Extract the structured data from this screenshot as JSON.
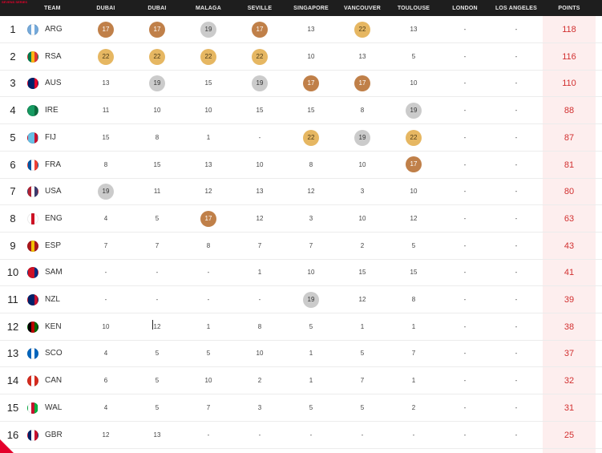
{
  "header": {
    "logo_text": "SEVENS SERIES",
    "team_label": "TEAM",
    "columns": [
      "DUBAI",
      "DUBAI",
      "MALAGA",
      "SEVILLE",
      "SINGAPORE",
      "VANCOUVER",
      "TOULOUSE",
      "LONDON",
      "LOS ANGELES"
    ],
    "points_label": "POINTS"
  },
  "rows": [
    {
      "rank": "1",
      "code": "ARG",
      "flag_colors": [
        "#75aadb",
        "#ffffff",
        "#75aadb"
      ],
      "cells": [
        "17",
        "17",
        "19",
        "17",
        "13",
        "22",
        "13",
        "-",
        "-"
      ],
      "points": "118"
    },
    {
      "rank": "2",
      "code": "RSA",
      "flag_colors": [
        "#007a4d",
        "#ffb612",
        "#de3831"
      ],
      "cells": [
        "22",
        "22",
        "22",
        "22",
        "10",
        "13",
        "5",
        "-",
        "-"
      ],
      "points": "116"
    },
    {
      "rank": "3",
      "code": "AUS",
      "flag_colors": [
        "#012169",
        "#012169",
        "#e4002b"
      ],
      "cells": [
        "13",
        "19",
        "15",
        "19",
        "17",
        "17",
        "10",
        "-",
        "-"
      ],
      "points": "110"
    },
    {
      "rank": "4",
      "code": "IRE",
      "flag_colors": [
        "#169b62",
        "#169b62",
        "#0e6b3f"
      ],
      "cells": [
        "11",
        "10",
        "10",
        "15",
        "15",
        "8",
        "19",
        "-",
        "-"
      ],
      "points": "88"
    },
    {
      "rank": "5",
      "code": "FIJ",
      "flag_colors": [
        "#68bfe5",
        "#68bfe5",
        "#c8102e"
      ],
      "cells": [
        "15",
        "8",
        "1",
        "-",
        "22",
        "19",
        "22",
        "-",
        "-"
      ],
      "points": "87"
    },
    {
      "rank": "6",
      "code": "FRA",
      "flag_colors": [
        "#0055a4",
        "#ffffff",
        "#ef4135"
      ],
      "cells": [
        "8",
        "15",
        "13",
        "10",
        "8",
        "10",
        "17",
        "-",
        "-"
      ],
      "points": "81"
    },
    {
      "rank": "7",
      "code": "USA",
      "flag_colors": [
        "#b22234",
        "#ffffff",
        "#3c3b6e"
      ],
      "cells": [
        "19",
        "11",
        "12",
        "13",
        "12",
        "3",
        "10",
        "-",
        "-"
      ],
      "points": "80"
    },
    {
      "rank": "8",
      "code": "ENG",
      "flag_colors": [
        "#ffffff",
        "#ce1124",
        "#ffffff"
      ],
      "cells": [
        "4",
        "5",
        "17",
        "12",
        "3",
        "10",
        "12",
        "-",
        "-"
      ],
      "points": "63"
    },
    {
      "rank": "9",
      "code": "ESP",
      "flag_colors": [
        "#aa151b",
        "#f1bf00",
        "#aa151b"
      ],
      "cells": [
        "7",
        "7",
        "8",
        "7",
        "7",
        "2",
        "5",
        "-",
        "-"
      ],
      "points": "43"
    },
    {
      "rank": "10",
      "code": "SAM",
      "flag_colors": [
        "#ce1126",
        "#ce1126",
        "#002b7f"
      ],
      "cells": [
        "-",
        "-",
        "-",
        "1",
        "10",
        "15",
        "15",
        "-",
        "-"
      ],
      "points": "41"
    },
    {
      "rank": "11",
      "code": "NZL",
      "flag_colors": [
        "#012169",
        "#012169",
        "#c8102e"
      ],
      "cells": [
        "-",
        "-",
        "-",
        "-",
        "19",
        "12",
        "8",
        "-",
        "-"
      ],
      "points": "39"
    },
    {
      "rank": "12",
      "code": "KEN",
      "flag_colors": [
        "#000000",
        "#bb0000",
        "#006600"
      ],
      "cells": [
        "10",
        "12",
        "1",
        "8",
        "5",
        "1",
        "1",
        "-",
        "-"
      ],
      "points": "38"
    },
    {
      "rank": "13",
      "code": "SCO",
      "flag_colors": [
        "#0065bd",
        "#ffffff",
        "#0065bd"
      ],
      "cells": [
        "4",
        "5",
        "5",
        "10",
        "1",
        "5",
        "7",
        "-",
        "-"
      ],
      "points": "37"
    },
    {
      "rank": "14",
      "code": "CAN",
      "flag_colors": [
        "#d52b1e",
        "#ffffff",
        "#d52b1e"
      ],
      "cells": [
        "6",
        "5",
        "10",
        "2",
        "1",
        "7",
        "1",
        "-",
        "-"
      ],
      "points": "32"
    },
    {
      "rank": "15",
      "code": "WAL",
      "flag_colors": [
        "#ffffff",
        "#c8102e",
        "#00b140"
      ],
      "cells": [
        "4",
        "5",
        "7",
        "3",
        "5",
        "5",
        "2",
        "-",
        "-"
      ],
      "points": "31"
    },
    {
      "rank": "16",
      "code": "GBR",
      "flag_colors": [
        "#012169",
        "#ffffff",
        "#c8102e"
      ],
      "cells": [
        "12",
        "13",
        "-",
        "-",
        "-",
        "-",
        "-",
        "-",
        "-"
      ],
      "points": "25"
    }
  ],
  "badge_colors": {
    "17": "#c08049",
    "22": "#e6b762",
    "19": "#cbcbcb"
  },
  "accent": "#e4002b",
  "points_color": "#d23030"
}
